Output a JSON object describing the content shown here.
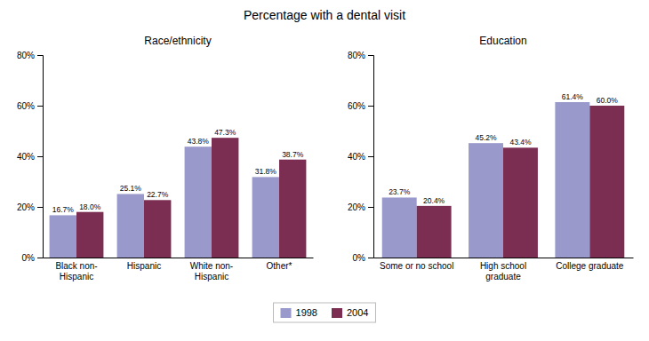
{
  "chart_data": [
    {
      "type": "bar",
      "title": "Percentage with a dental visit",
      "subtitle": "Race/ethnicity",
      "categories": [
        "Black non-\nHispanic",
        "Hispanic",
        "White non-\nHispanic",
        "Other*"
      ],
      "series": [
        {
          "name": "1998",
          "color": "#9999cc",
          "values": [
            16.7,
            25.1,
            43.8,
            31.8
          ],
          "value_labels": [
            "16.7%",
            "25.1%",
            "43.8%",
            "31.8%"
          ]
        },
        {
          "name": "2004",
          "color": "#7b2d52",
          "values": [
            18.0,
            22.7,
            47.3,
            38.7
          ],
          "value_labels": [
            "18.0%",
            "22.7%",
            "47.3%",
            "38.7%"
          ]
        }
      ],
      "ylim": [
        0,
        80
      ],
      "yticks": [
        {
          "value": 0,
          "label": "0%"
        },
        {
          "value": 20,
          "label": "20%"
        },
        {
          "value": 40,
          "label": "40%"
        },
        {
          "value": 60,
          "label": "60%"
        },
        {
          "value": 80,
          "label": "80%"
        }
      ],
      "data_labels": true,
      "grid": false,
      "legend": "bottom"
    },
    {
      "type": "bar",
      "subtitle": "Education",
      "categories": [
        "Some or no school",
        "High school\ngraduate",
        "College graduate"
      ],
      "series": [
        {
          "name": "1998",
          "color": "#9999cc",
          "values": [
            23.7,
            45.2,
            61.4
          ],
          "value_labels": [
            "23.7%",
            "45.2%",
            "61.4%"
          ]
        },
        {
          "name": "2004",
          "color": "#7b2d52",
          "values": [
            20.4,
            43.4,
            60.0
          ],
          "value_labels": [
            "20.4%",
            "43.4%",
            "60.0%"
          ]
        }
      ],
      "ylim": [
        0,
        80
      ],
      "yticks": [
        {
          "value": 0,
          "label": "0%"
        },
        {
          "value": 20,
          "label": "20%"
        },
        {
          "value": 40,
          "label": "40%"
        },
        {
          "value": 60,
          "label": "60%"
        },
        {
          "value": 80,
          "label": "80%"
        }
      ],
      "data_labels": true,
      "grid": false
    }
  ]
}
